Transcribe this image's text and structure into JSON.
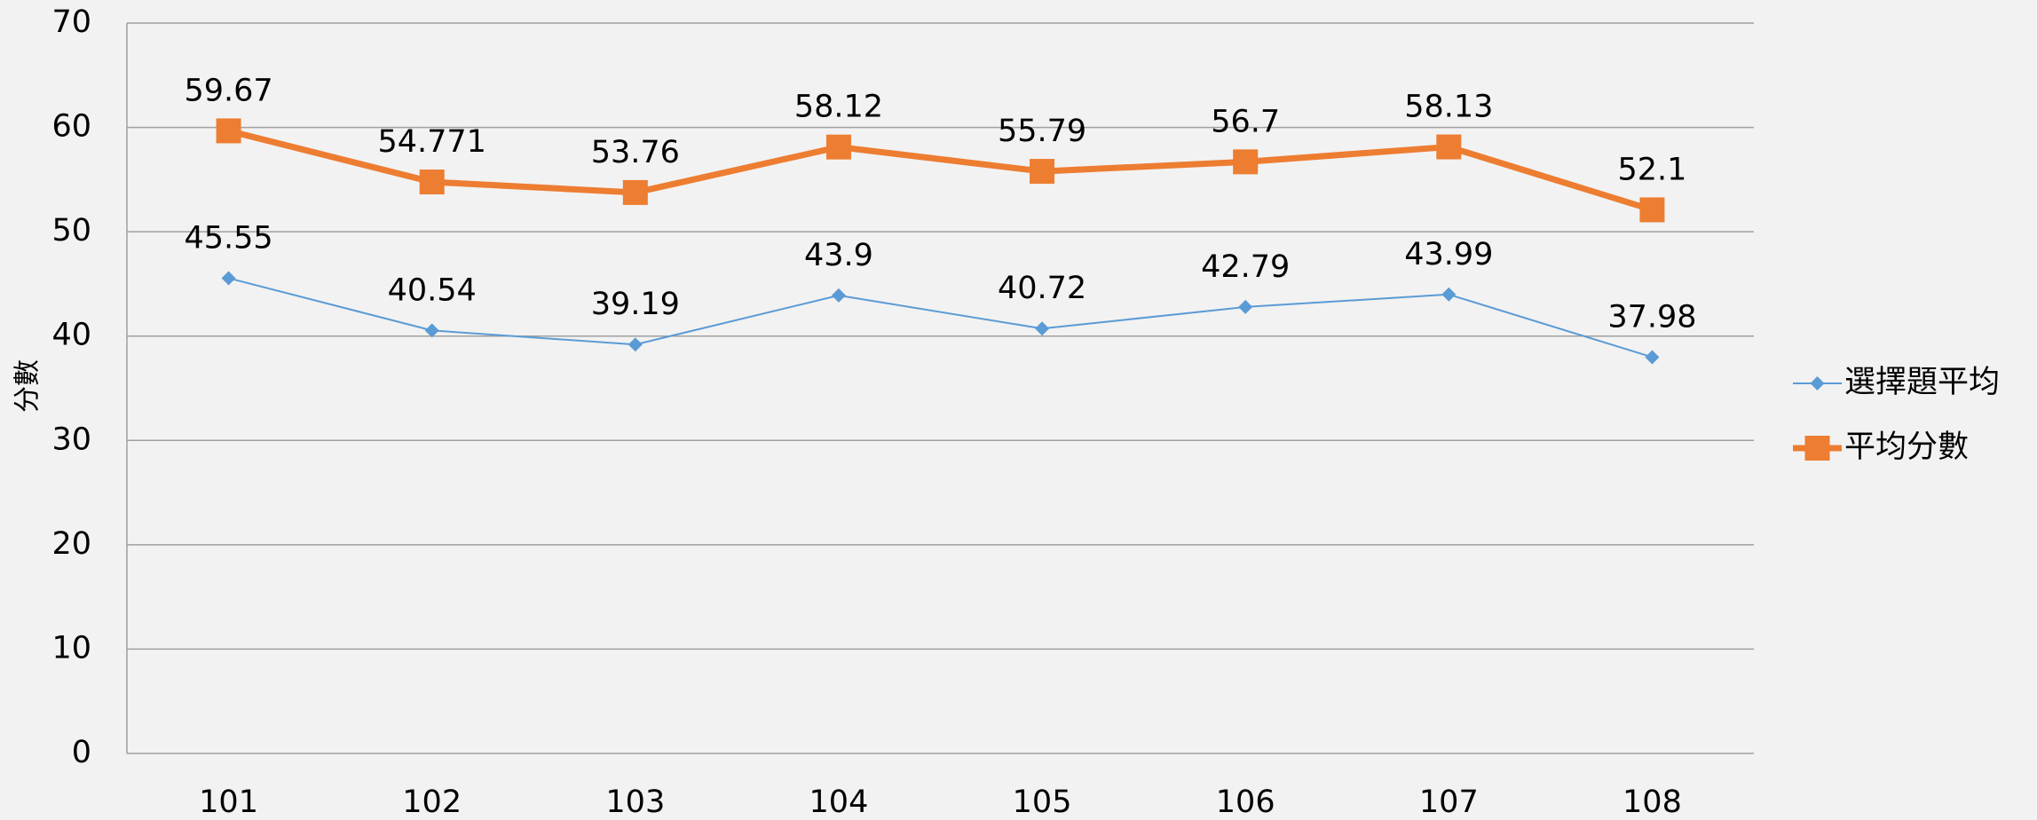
{
  "chart_data": {
    "type": "line",
    "y_label": "分數",
    "categories": [
      "101",
      "102",
      "103",
      "104",
      "105",
      "106",
      "107",
      "108"
    ],
    "series": [
      {
        "name": "選擇題平均",
        "color": "#5b9bd5",
        "marker": "diamond",
        "values": [
          45.55,
          40.54,
          39.19,
          43.9,
          40.72,
          42.79,
          43.99,
          37.98
        ]
      },
      {
        "name": "平均分數",
        "color": "#ed7d31",
        "marker": "square",
        "values": [
          59.67,
          54.771,
          53.76,
          58.12,
          55.79,
          56.7,
          58.13,
          52.1
        ]
      }
    ],
    "ylim": [
      0,
      70
    ],
    "yticks": [
      0,
      10,
      20,
      30,
      40,
      50,
      60,
      70
    ],
    "grid": true,
    "legend": "right"
  }
}
